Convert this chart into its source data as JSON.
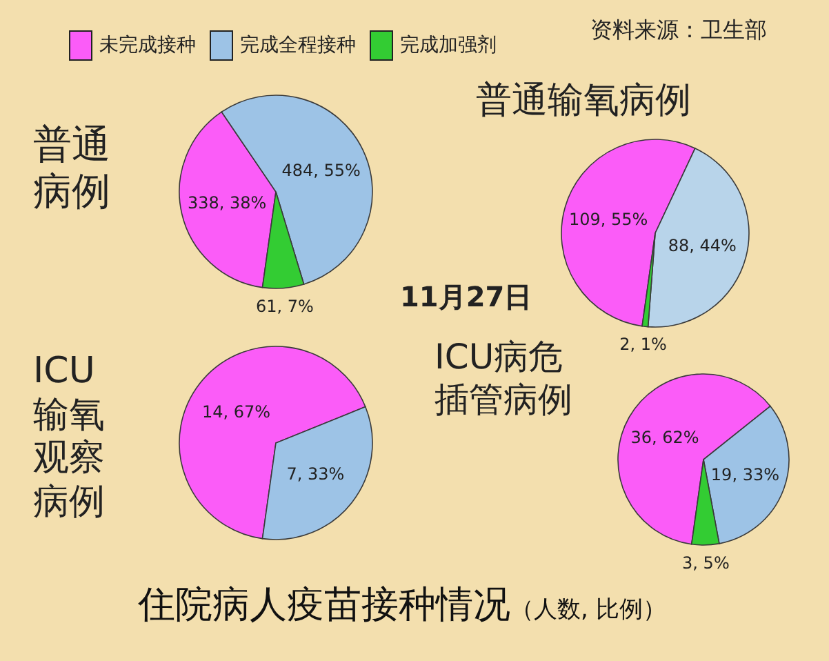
{
  "chart_data": [
    {
      "type": "pie",
      "title": "普通病例",
      "categories": [
        "未完成接种",
        "完成全程接种",
        "完成加强剂"
      ],
      "values": [
        338,
        484,
        61
      ],
      "colors": [
        "#fb5cf8",
        "#9dc3e6",
        "#33cc33"
      ],
      "value_labels": [
        "338, 38%",
        "484, 55%",
        "61, 7%"
      ],
      "legend": "top"
    },
    {
      "type": "pie",
      "title": "普通输氧病例",
      "categories": [
        null,
        null,
        null
      ],
      "values": [
        109,
        88,
        2
      ],
      "colors": [
        "#fb5cf8",
        "#b8d4ea",
        "#33cc33"
      ],
      "value_labels": [
        "109, 55%",
        "88, 44%",
        "2, 1%"
      ]
    },
    {
      "type": "pie",
      "title": "ICU输氧观察病例",
      "categories": [
        null,
        null
      ],
      "values": [
        14,
        7
      ],
      "colors": [
        "#fb5cf8",
        "#9dc3e6"
      ],
      "value_labels": [
        "14, 67%",
        "7, 33%"
      ]
    },
    {
      "type": "pie",
      "title": "ICU病危插管病例",
      "categories": [
        null,
        null,
        null
      ],
      "values": [
        36,
        19,
        3
      ],
      "colors": [
        "#fb5cf8",
        "#9dc3e6",
        "#33cc33"
      ],
      "value_labels": [
        "36, 62%",
        "19, 33%",
        "3, 5%"
      ]
    },
    {
      "type": "other",
      "title": "住院病人疫苗接种情况",
      "subtitle": "（人数, 比例）",
      "annotations": [
        "11月27日",
        "资料来源：卫生部"
      ]
    }
  ]
}
